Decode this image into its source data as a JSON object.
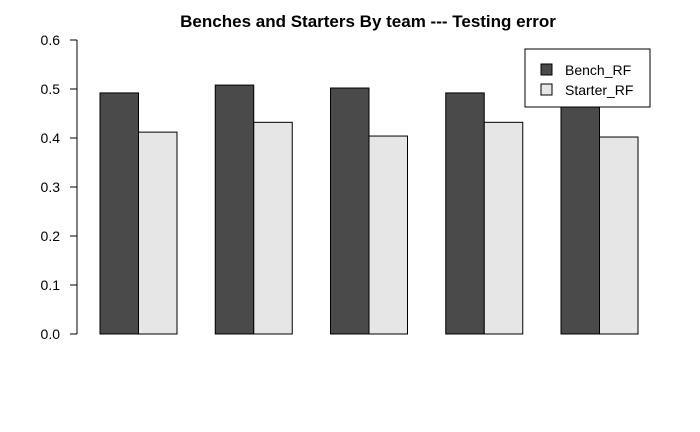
{
  "chart_data": {
    "type": "bar",
    "title": "Benches and Starters By team --- Testing error",
    "xlabel": "",
    "ylabel": "",
    "categories": [
      "",
      "",
      "",
      "",
      ""
    ],
    "series": [
      {
        "name": "Bench_RF",
        "color": "#4a4a4a",
        "values": [
          0.492,
          0.508,
          0.502,
          0.492,
          0.493
        ]
      },
      {
        "name": "Starter_RF",
        "color": "#e6e6e6",
        "values": [
          0.412,
          0.432,
          0.404,
          0.432,
          0.402
        ]
      }
    ],
    "ylim": [
      0,
      0.6
    ],
    "yticks": [
      "0.0",
      "0.1",
      "0.2",
      "0.3",
      "0.4",
      "0.5",
      "0.6"
    ],
    "legend_position": "top-right",
    "grid": false
  }
}
